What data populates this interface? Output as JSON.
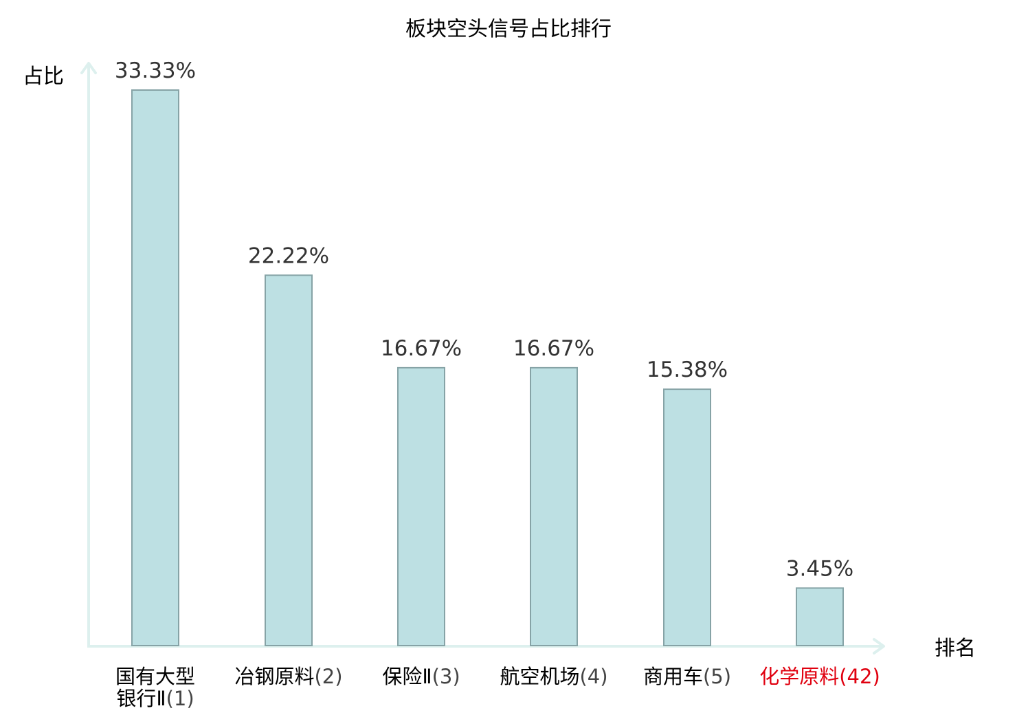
{
  "chart_data": {
    "type": "bar",
    "title": "板块空头信号占比排行",
    "ylabel": "占比",
    "xlabel": "排名",
    "categories": [
      {
        "name": "国有大型银行Ⅱ",
        "rank": "(1)",
        "highlight": false
      },
      {
        "name": "冶钢原料",
        "rank": "(2)",
        "highlight": false
      },
      {
        "name": "保险Ⅱ",
        "rank": "(3)",
        "highlight": false
      },
      {
        "name": "航空机场",
        "rank": "(4)",
        "highlight": false
      },
      {
        "name": "商用车",
        "rank": "(5)",
        "highlight": false
      },
      {
        "name": "化学原料",
        "rank": "(42)",
        "highlight": true
      }
    ],
    "values": [
      33.33,
      22.22,
      16.67,
      16.67,
      15.38,
      3.45
    ],
    "value_labels": [
      "33.33%",
      "22.22%",
      "16.67%",
      "16.67%",
      "15.38%",
      "3.45%"
    ],
    "ylim": [
      0,
      33.33
    ],
    "grid": false,
    "colors": {
      "bar_fill": "#bde0e3",
      "bar_stroke": "#86a3a6",
      "axis": "#ddf0ee",
      "highlight": "#e0000f"
    }
  }
}
